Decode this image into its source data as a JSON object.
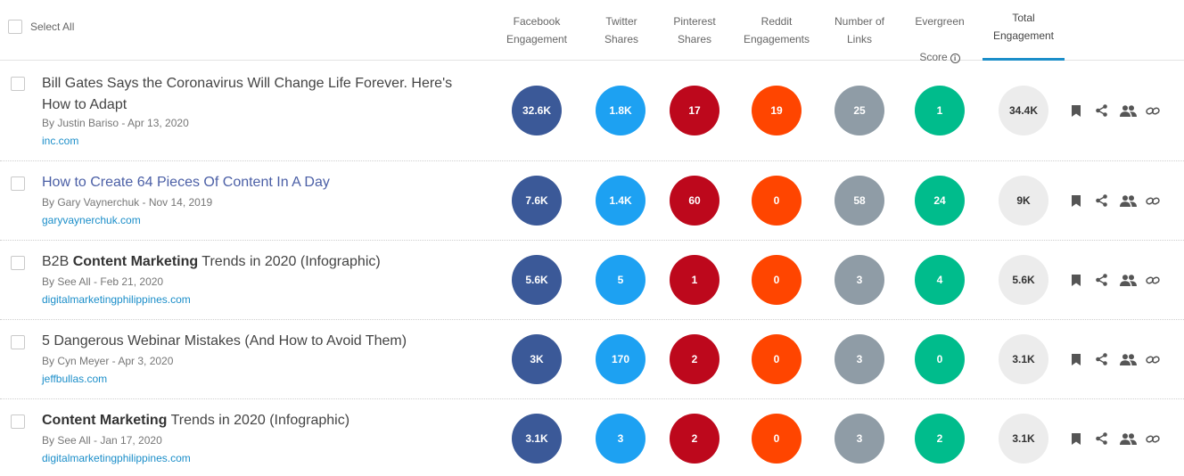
{
  "header": {
    "select_all": "Select All",
    "columns": {
      "facebook": "Facebook\nEngagement",
      "twitter": "Twitter\nShares",
      "pinterest": "Pinterest\nShares",
      "reddit": "Reddit\nEngagements",
      "links": "Number of\nLinks",
      "evergreen_l1": "Evergreen",
      "evergreen_l2": "Score",
      "evergreen_info": "i",
      "total": "Total\nEngagement"
    }
  },
  "colors": {
    "facebook": "#3b5998",
    "twitter": "#1da1f2",
    "pinterest": "#bd081c",
    "reddit": "#ff4500",
    "links": "#8f9ca6",
    "evergreen": "#00bc8c",
    "total": "#ececec",
    "accent": "#1b8ec9"
  },
  "rows": [
    {
      "title": "Bill Gates Says the Coronavirus Will Change Life Forever. Here's How to Adapt",
      "meta": "By Justin Bariso - Apr 13, 2020",
      "domain": "inc.com",
      "facebook": "32.6K",
      "twitter": "1.8K",
      "pinterest": "17",
      "reddit": "19",
      "links": "25",
      "evergreen": "1",
      "total": "34.4K"
    },
    {
      "title": "How to Create 64 Pieces Of Content In A Day",
      "meta": "By Gary Vaynerchuk - Nov 14, 2019",
      "domain": "garyvaynerchuk.com",
      "facebook": "7.6K",
      "twitter": "1.4K",
      "pinterest": "60",
      "reddit": "0",
      "links": "58",
      "evergreen": "24",
      "total": "9K"
    },
    {
      "title_pre": "B2B ",
      "title_bold": "Content Marketing",
      "title_post": " Trends in 2020 (Infographic)",
      "meta": "By See All - Feb 21, 2020",
      "domain": "digitalmarketingphilippines.com",
      "facebook": "5.6K",
      "twitter": "5",
      "pinterest": "1",
      "reddit": "0",
      "links": "3",
      "evergreen": "4",
      "total": "5.6K"
    },
    {
      "title": "5 Dangerous Webinar Mistakes (And How to Avoid Them)",
      "meta": "By Cyn Meyer - Apr 3, 2020",
      "domain": "jeffbullas.com",
      "facebook": "3K",
      "twitter": "170",
      "pinterest": "2",
      "reddit": "0",
      "links": "3",
      "evergreen": "0",
      "total": "3.1K"
    },
    {
      "title_bold": "Content Marketing",
      "title_post": " Trends in 2020 (Infographic)",
      "meta": "By See All - Jan 17, 2020",
      "domain": "digitalmarketingphilippines.com",
      "facebook": "3.1K",
      "twitter": "3",
      "pinterest": "2",
      "reddit": "0",
      "links": "3",
      "evergreen": "2",
      "total": "3.1K"
    }
  ],
  "icons": [
    "bookmark-icon",
    "share-icon",
    "users-icon",
    "link-icon"
  ]
}
